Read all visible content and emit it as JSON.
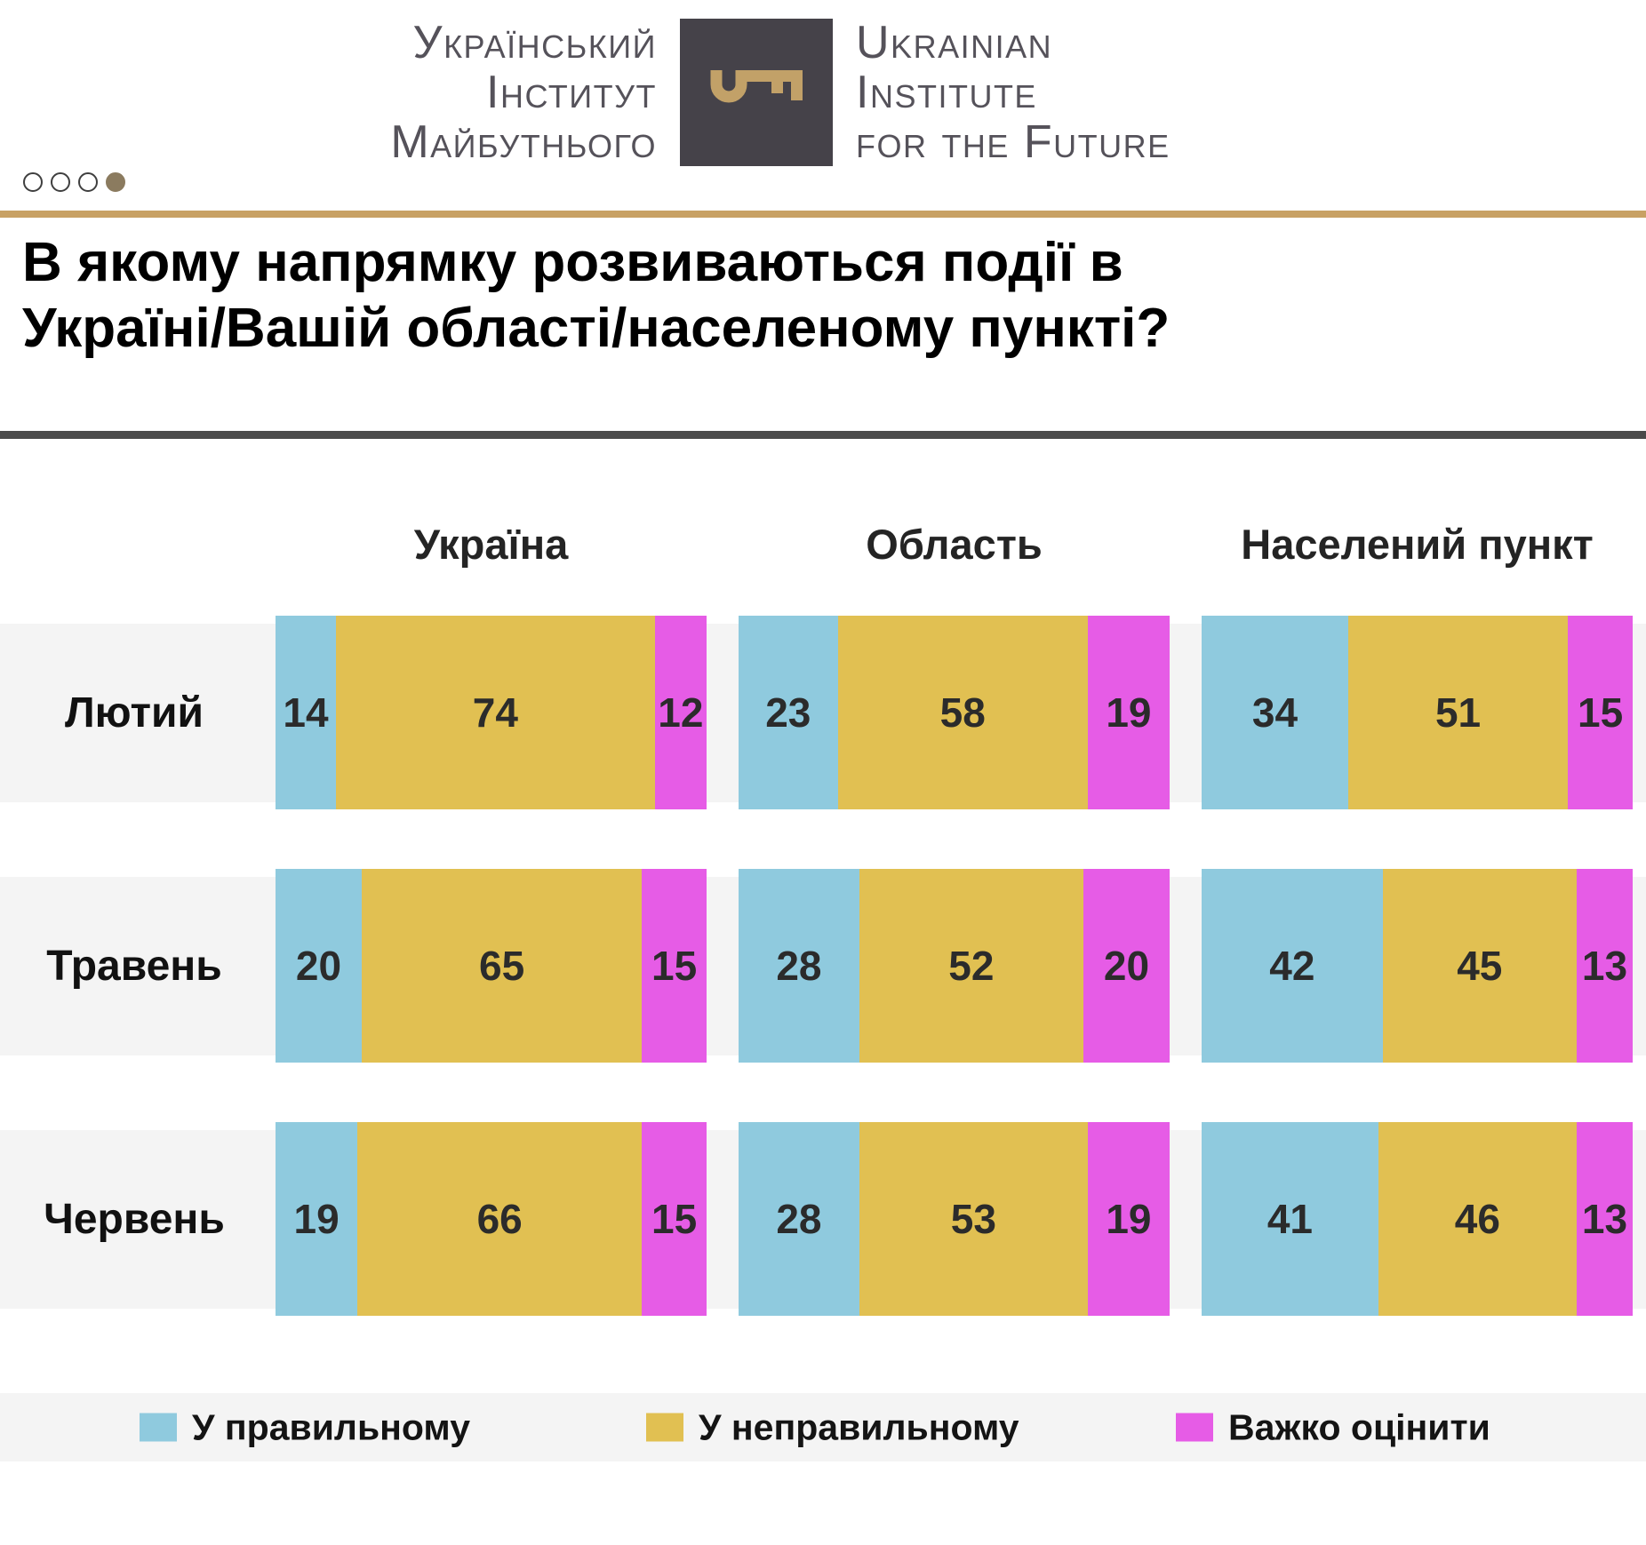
{
  "header": {
    "logo_left_lines": [
      "Український",
      "Інститут",
      "Майбутнього"
    ],
    "logo_right_lines": [
      "Ukrainian",
      "Institute",
      "for the Future"
    ],
    "pagination": {
      "total": 4,
      "active_index": 3
    }
  },
  "title": "В якому напрямку розвиваються події в\nУкраїні/Вашій області/населеному пункті?",
  "chart_data": {
    "type": "bar",
    "variant": "horizontal-stacked-100",
    "unit": "percent",
    "column_groups": [
      "Україна",
      "Область",
      "Населений пункт"
    ],
    "row_labels": [
      "Лютий",
      "Травень",
      "Червень"
    ],
    "series": [
      {
        "label": "У правильному",
        "color": "#8FCADE"
      },
      {
        "label": "У неправильному",
        "color": "#E1C052"
      },
      {
        "label": "Важко оцінити",
        "color": "#E65CE6"
      }
    ],
    "values": [
      {
        "row": "Лютий",
        "groups": [
          [
            14,
            74,
            12
          ],
          [
            23,
            58,
            19
          ],
          [
            34,
            51,
            15
          ]
        ]
      },
      {
        "row": "Травень",
        "groups": [
          [
            20,
            65,
            15
          ],
          [
            28,
            52,
            20
          ],
          [
            42,
            45,
            13
          ]
        ]
      },
      {
        "row": "Червень",
        "groups": [
          [
            19,
            66,
            15
          ],
          [
            28,
            53,
            19
          ],
          [
            41,
            46,
            13
          ]
        ]
      }
    ],
    "legend_position": "bottom"
  },
  "colors": {
    "accent_line": "#C8A164",
    "divider": "#4A4A4A",
    "row_strip": "#F4F4F4",
    "logo_square": "#454249",
    "logo_key": "#C2A168",
    "logo_text": "#55525A",
    "pagination_active": "#8B7B5F"
  }
}
